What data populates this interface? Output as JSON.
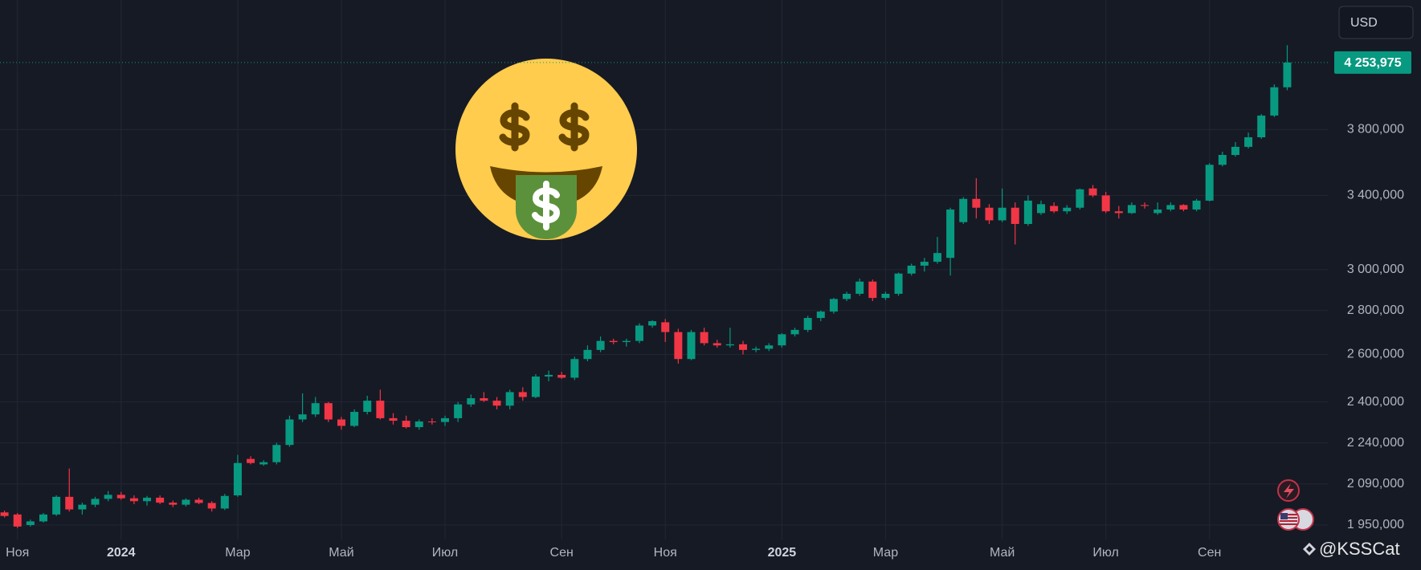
{
  "chart_data": {
    "type": "candlestick",
    "currency": "USD",
    "watermark": "@KSSCat",
    "log_scale": true,
    "grid": true,
    "up_color": "#089981",
    "down_color": "#f23645",
    "categories": [
      null,
      "Ноя",
      null,
      null,
      null,
      null,
      null,
      null,
      null,
      "2024",
      null,
      null,
      null,
      null,
      null,
      null,
      null,
      null,
      "Мар",
      null,
      null,
      null,
      null,
      null,
      null,
      null,
      "Май",
      null,
      null,
      null,
      null,
      null,
      null,
      null,
      "Июл",
      null,
      null,
      null,
      null,
      null,
      null,
      null,
      null,
      "Сен",
      null,
      null,
      null,
      null,
      null,
      null,
      null,
      "Ноя",
      null,
      null,
      null,
      null,
      null,
      null,
      null,
      null,
      "2025",
      null,
      null,
      null,
      null,
      null,
      null,
      null,
      "Мар",
      null,
      null,
      null,
      null,
      null,
      null,
      null,
      null,
      "Май",
      null,
      null,
      null,
      null,
      null,
      null,
      null,
      "Июл",
      null,
      null,
      null,
      null,
      null,
      null,
      null,
      "Сен",
      null,
      null,
      null,
      null,
      null,
      null
    ],
    "open": [
      1992,
      1985,
      1950,
      1962,
      1985,
      2045,
      2002,
      2018,
      2038,
      2052,
      2040,
      2030,
      2042,
      2025,
      2018,
      2035,
      2024,
      2005,
      2050,
      2180,
      2160,
      2168,
      2232,
      2330,
      2350,
      2395,
      2330,
      2305,
      2360,
      2405,
      2335,
      2325,
      2300,
      2322,
      2320,
      2335,
      2390,
      2415,
      2405,
      2385,
      2440,
      2420,
      2505,
      2512,
      2500,
      2580,
      2620,
      2660,
      2655,
      2660,
      2730,
      2745,
      2700,
      2580,
      2700,
      2650,
      2640,
      2645,
      2620,
      2625,
      2640,
      2690,
      2710,
      2765,
      2795,
      2855,
      2880,
      2940,
      2860,
      2880,
      2980,
      3020,
      3040,
      3060,
      3250,
      3380,
      3330,
      3260,
      3330,
      3240,
      3300,
      3340,
      3310,
      3330,
      3440,
      3400,
      3310,
      3300,
      3345,
      3300,
      3320,
      3345,
      3320,
      3370,
      3580,
      3640,
      3690,
      3750,
      3890,
      4080
    ],
    "high": [
      1998,
      1990,
      1968,
      1990,
      2050,
      2145,
      2025,
      2045,
      2065,
      2062,
      2050,
      2048,
      2050,
      2032,
      2040,
      2042,
      2030,
      2055,
      2195,
      2190,
      2175,
      2240,
      2345,
      2435,
      2420,
      2400,
      2340,
      2370,
      2425,
      2450,
      2355,
      2345,
      2330,
      2335,
      2345,
      2400,
      2430,
      2440,
      2420,
      2450,
      2460,
      2515,
      2530,
      2525,
      2590,
      2640,
      2680,
      2670,
      2670,
      2740,
      2755,
      2760,
      2715,
      2710,
      2720,
      2665,
      2720,
      2660,
      2635,
      2650,
      2695,
      2720,
      2775,
      2800,
      2860,
      2890,
      2955,
      2950,
      2890,
      2985,
      3030,
      3060,
      3170,
      3330,
      3390,
      3500,
      3350,
      3440,
      3360,
      3400,
      3370,
      3360,
      3345,
      3440,
      3460,
      3420,
      3340,
      3360,
      3360,
      3360,
      3360,
      3350,
      3380,
      3590,
      3660,
      3720,
      3780,
      3900,
      4100,
      4380
    ],
    "low": [
      1975,
      1940,
      1945,
      1958,
      1980,
      1995,
      1985,
      2010,
      2030,
      2035,
      2020,
      2015,
      2020,
      2010,
      2012,
      2020,
      1995,
      2000,
      2045,
      2160,
      2155,
      2160,
      2225,
      2320,
      2340,
      2320,
      2290,
      2300,
      2350,
      2330,
      2310,
      2295,
      2290,
      2310,
      2305,
      2320,
      2380,
      2400,
      2370,
      2370,
      2405,
      2415,
      2485,
      2495,
      2490,
      2570,
      2610,
      2645,
      2635,
      2650,
      2720,
      2655,
      2560,
      2575,
      2640,
      2630,
      2630,
      2600,
      2610,
      2615,
      2630,
      2680,
      2700,
      2750,
      2785,
      2845,
      2870,
      2845,
      2850,
      2870,
      2970,
      2990,
      3030,
      2970,
      3240,
      3270,
      3240,
      3250,
      3130,
      3230,
      3290,
      3300,
      3295,
      3320,
      3390,
      3300,
      3270,
      3295,
      3325,
      3290,
      3310,
      3310,
      3310,
      3365,
      3570,
      3630,
      3680,
      3740,
      3880,
      4060
    ],
    "close": [
      1980,
      1945,
      1962,
      1985,
      2045,
      2002,
      2018,
      2038,
      2052,
      2040,
      2030,
      2042,
      2025,
      2018,
      2035,
      2024,
      2005,
      2048,
      2165,
      2165,
      2168,
      2232,
      2330,
      2350,
      2395,
      2330,
      2305,
      2360,
      2405,
      2335,
      2325,
      2300,
      2322,
      2320,
      2335,
      2390,
      2415,
      2405,
      2385,
      2440,
      2420,
      2505,
      2512,
      2500,
      2580,
      2620,
      2660,
      2655,
      2660,
      2730,
      2750,
      2700,
      2580,
      2700,
      2650,
      2640,
      2645,
      2620,
      2625,
      2640,
      2690,
      2710,
      2765,
      2795,
      2855,
      2880,
      2940,
      2860,
      2880,
      2980,
      3020,
      3040,
      3085,
      3320,
      3380,
      3330,
      3260,
      3330,
      3240,
      3370,
      3350,
      3310,
      3330,
      3435,
      3400,
      3310,
      3300,
      3345,
      3340,
      3320,
      3345,
      3320,
      3370,
      3580,
      3640,
      3690,
      3750,
      3890,
      4080,
      4253.975
    ],
    "last_price": {
      "value": 4253.975,
      "label": "4 253,975"
    },
    "ylim": [
      1903,
      4727
    ],
    "yticks": [
      {
        "value": 1950,
        "label": "1 950,000"
      },
      {
        "value": 2090,
        "label": "2 090,000"
      },
      {
        "value": 2240,
        "label": "2 240,000"
      },
      {
        "value": 2400,
        "label": "2 400,000"
      },
      {
        "value": 2600,
        "label": "2 600,000"
      },
      {
        "value": 2800,
        "label": "2 800,000"
      },
      {
        "value": 3000,
        "label": "3 000,000"
      },
      {
        "value": 3400,
        "label": "3 400,000"
      },
      {
        "value": 3800,
        "label": "3 800,000"
      }
    ]
  }
}
